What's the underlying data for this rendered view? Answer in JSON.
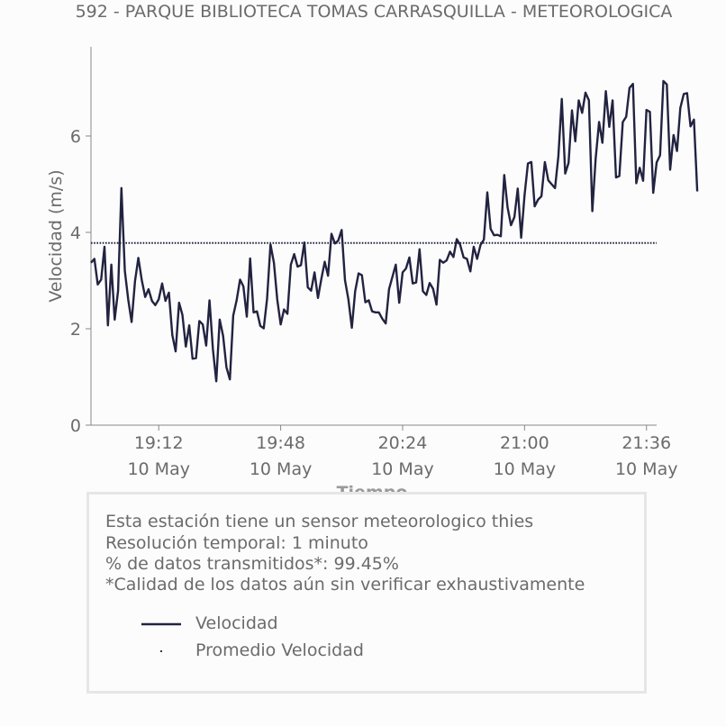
{
  "chart_data": {
    "type": "line",
    "title": "592 - PARQUE BIBLIOTECA TOMAS CARRASQUILLA - METEOROLOGICA",
    "xlabel": "Tiempo",
    "ylabel": "Velocidad (m/s)",
    "ylim": [
      0,
      7.85
    ],
    "yticks": [
      0,
      2,
      4,
      6
    ],
    "xlim": [
      "18:52",
      "21:39"
    ],
    "xticks": [
      {
        "time": "19:12",
        "date": "10 May"
      },
      {
        "time": "19:48",
        "date": "10 May"
      },
      {
        "time": "20:24",
        "date": "10 May"
      },
      {
        "time": "21:00",
        "date": "10 May"
      },
      {
        "time": "21:36",
        "date": "10 May"
      }
    ],
    "x_start": "18:52",
    "x_step_minutes": 1,
    "series": [
      {
        "name": "Velocidad",
        "color": "#222340",
        "values": [
          3.37,
          3.45,
          2.92,
          3.02,
          3.7,
          2.07,
          3.33,
          2.19,
          2.79,
          4.92,
          3.2,
          2.6,
          2.14,
          2.99,
          3.47,
          3.01,
          2.66,
          2.82,
          2.58,
          2.49,
          2.61,
          2.94,
          2.58,
          2.75,
          1.87,
          1.53,
          2.54,
          2.29,
          1.63,
          2.07,
          1.38,
          1.39,
          2.16,
          2.09,
          1.65,
          2.59,
          1.57,
          0.91,
          2.19,
          1.85,
          1.2,
          0.95,
          2.27,
          2.59,
          3.02,
          2.88,
          2.25,
          3.46,
          2.34,
          2.36,
          2.06,
          2.01,
          2.62,
          3.75,
          3.37,
          2.61,
          2.09,
          2.4,
          2.31,
          3.33,
          3.55,
          3.29,
          3.32,
          3.79,
          2.86,
          2.79,
          3.17,
          2.64,
          3.03,
          3.39,
          3.1,
          3.97,
          3.77,
          3.83,
          4.05,
          3.01,
          2.61,
          2.02,
          2.78,
          3.15,
          3.11,
          2.55,
          2.59,
          2.36,
          2.34,
          2.34,
          2.21,
          2.11,
          2.82,
          3.08,
          3.33,
          2.54,
          3.17,
          3.25,
          3.48,
          2.94,
          2.96,
          3.65,
          2.78,
          2.7,
          2.95,
          2.83,
          2.5,
          3.43,
          3.37,
          3.42,
          3.6,
          3.49,
          3.86,
          3.74,
          3.48,
          3.45,
          3.19,
          3.7,
          3.45,
          3.74,
          3.85,
          4.83,
          4.07,
          3.94,
          3.95,
          3.92,
          5.19,
          4.52,
          4.15,
          4.32,
          4.91,
          3.89,
          4.76,
          5.43,
          5.46,
          4.54,
          4.68,
          4.75,
          5.46,
          5.08,
          5.0,
          4.92,
          5.58,
          6.77,
          5.22,
          5.44,
          6.53,
          5.89,
          6.74,
          6.48,
          6.9,
          6.74,
          4.44,
          5.53,
          6.29,
          5.86,
          6.93,
          6.19,
          6.74,
          5.14,
          5.17,
          6.29,
          6.4,
          7.0,
          7.08,
          5.02,
          5.34,
          5.07,
          6.54,
          6.5,
          4.82,
          5.45,
          5.6,
          7.14,
          7.07,
          5.3,
          6.02,
          5.69,
          6.58,
          6.87,
          6.89,
          6.2,
          6.34,
          4.85
        ]
      },
      {
        "name": "Promedio Velocidad",
        "color": "#222340",
        "style": "dotted",
        "constant": 3.78
      }
    ],
    "legend": [
      "Velocidad",
      "Promedio Velocidad"
    ],
    "legend_position": "bottom"
  },
  "info": {
    "lines": [
      "Esta estación tiene un sensor meteorologico thies",
      "Resolución temporal: 1 minuto",
      "% de datos transmitidos*: 99.45%",
      "*Calidad de los datos aún sin verificar exhaustivamente"
    ]
  },
  "colors": {
    "line": "#222340",
    "text": "#6b6b6b",
    "axis": "#888888",
    "box_border": "#e6e6e6",
    "background": "#fcfcfc"
  }
}
